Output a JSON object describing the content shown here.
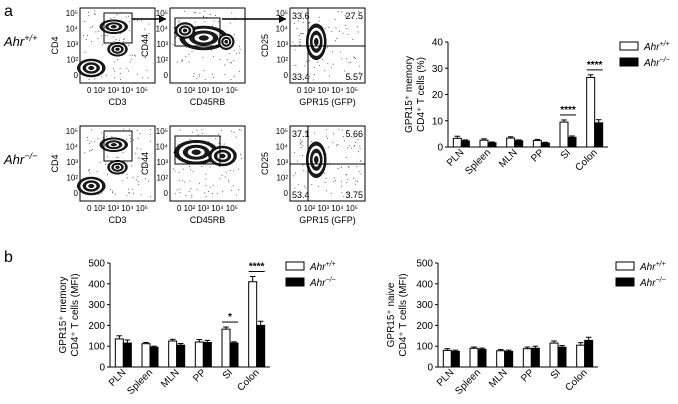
{
  "panel_labels": {
    "a": "a",
    "b": "b"
  },
  "genotypes": {
    "wt": "Ahr",
    "wt_sup": "+/+",
    "ko": "Ahr",
    "ko_sup": "−/−"
  },
  "flow": {
    "row_labels": [
      {
        "base": "Ahr",
        "sup": "+/+"
      },
      {
        "base": "Ahr",
        "sup": "−/−"
      }
    ],
    "plots": [
      {
        "xlabel": "CD3",
        "ylabel": "CD4"
      },
      {
        "xlabel": "CD45RB",
        "ylabel": "CD44"
      },
      {
        "xlabel": "GPR15 (GFP)",
        "ylabel": "CD25"
      }
    ],
    "quadrants": [
      {
        "ul": "33.6",
        "ur": "27.5",
        "ll": "33.4",
        "lr": "5.57"
      },
      {
        "ul": "37.1",
        "ur": "5.66",
        "ll": "53.4",
        "lr": "3.75"
      }
    ],
    "ticks": [
      "0",
      "10",
      "2",
      "10",
      "3",
      "10",
      "4",
      "10",
      "5"
    ],
    "tick_text": "0 10² 10³ 10⁴ 10⁵"
  },
  "chart_data": [
    {
      "type": "bar",
      "panel": "a",
      "ylabel_line1": "GPR15⁺ memory",
      "ylabel_line2": "CD4⁺ T cells (%)",
      "categories": [
        "PLN",
        "Spleen",
        "MLN",
        "PP",
        "SI",
        "Colon"
      ],
      "ylim": [
        0,
        40
      ],
      "yticks": [
        0,
        10,
        20,
        30,
        40
      ],
      "series": [
        {
          "name": "Ahr+/+",
          "fill": "#ffffff",
          "values": [
            3.3,
            2.6,
            3.4,
            2.5,
            9.5,
            26.5
          ],
          "errors": [
            0.8,
            0.5,
            0.5,
            0.4,
            0.8,
            1.0
          ]
        },
        {
          "name": "Ahr−/−",
          "fill": "#000000",
          "values": [
            2.3,
            1.6,
            2.4,
            1.5,
            3.7,
            9.2
          ],
          "errors": [
            0.4,
            0.3,
            0.3,
            0.3,
            0.5,
            1.2
          ]
        }
      ],
      "significance": [
        {
          "category": "SI",
          "label": "****"
        },
        {
          "category": "Colon",
          "label": "****"
        }
      ],
      "legend": "right"
    },
    {
      "type": "bar",
      "panel": "b-left",
      "ylabel_line1": "GPR15⁺ memory",
      "ylabel_line2": "CD4⁺ T cells (MFI)",
      "categories": [
        "PLN",
        "Spleen",
        "MLN",
        "PP",
        "SI",
        "Colon"
      ],
      "ylim": [
        0,
        500
      ],
      "yticks": [
        0,
        100,
        200,
        300,
        400,
        500
      ],
      "series": [
        {
          "name": "Ahr+/+",
          "fill": "#ffffff",
          "values": [
            135,
            112,
            125,
            120,
            182,
            410
          ],
          "errors": [
            15,
            6,
            8,
            12,
            10,
            25
          ]
        },
        {
          "name": "Ahr−/−",
          "fill": "#000000",
          "values": [
            115,
            95,
            105,
            118,
            115,
            200
          ],
          "errors": [
            15,
            5,
            8,
            10,
            6,
            20
          ]
        }
      ],
      "significance": [
        {
          "category": "SI",
          "label": "*"
        },
        {
          "category": "Colon",
          "label": "****"
        }
      ],
      "legend": "right"
    },
    {
      "type": "bar",
      "panel": "b-right",
      "ylabel_line1": "GPR15⁺ naive",
      "ylabel_line2": "CD4⁺ T cells (MFI)",
      "categories": [
        "PLN",
        "Spleen",
        "MLN",
        "PP",
        "SI",
        "Colon"
      ],
      "ylim": [
        0,
        500
      ],
      "yticks": [
        0,
        100,
        200,
        300,
        400,
        500
      ],
      "series": [
        {
          "name": "Ahr+/+",
          "fill": "#ffffff",
          "values": [
            80,
            90,
            78,
            88,
            115,
            105
          ],
          "errors": [
            8,
            6,
            6,
            8,
            10,
            12
          ]
        },
        {
          "name": "Ahr−/−",
          "fill": "#000000",
          "values": [
            75,
            85,
            75,
            90,
            95,
            128
          ],
          "errors": [
            6,
            6,
            6,
            10,
            8,
            15
          ]
        }
      ],
      "significance": [],
      "legend": "right"
    }
  ]
}
